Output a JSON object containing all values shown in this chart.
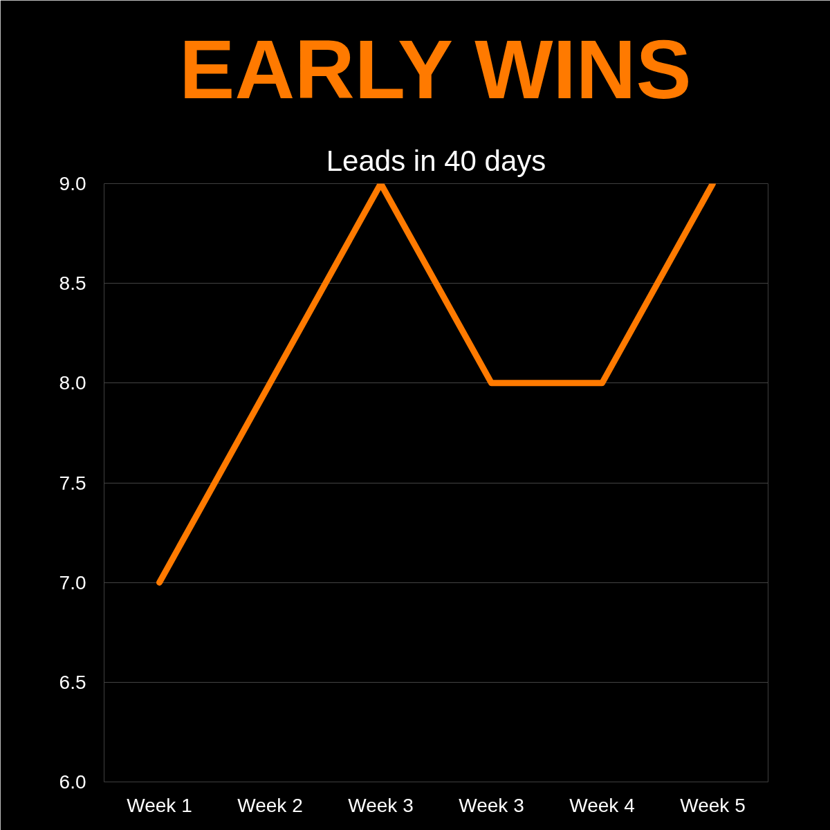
{
  "chart_data": {
    "type": "line",
    "title": "EARLY WINS",
    "subtitle": "Leads in 40 days",
    "categories": [
      "Week 1",
      "Week 2",
      "Week 3",
      "Week 3",
      "Week 4",
      "Week 5"
    ],
    "series": [
      {
        "color": "#ff7a00",
        "values": [
          7.0,
          8.0,
          9.0,
          8.0,
          8.0,
          9.0
        ]
      }
    ],
    "ylim": [
      6.0,
      9.0
    ],
    "yticks": [
      {
        "value": 6,
        "label": "6.0"
      },
      {
        "value": 6.5,
        "label": "6.5"
      },
      {
        "value": 7,
        "label": "7.0"
      },
      {
        "value": 7.5,
        "label": "7.5"
      },
      {
        "value": 8,
        "label": "8.0"
      },
      {
        "value": 8.5,
        "label": "8.5"
      },
      {
        "value": 9,
        "label": "9.0"
      }
    ],
    "grid": "y",
    "marker": "none",
    "line_style": "solid"
  }
}
